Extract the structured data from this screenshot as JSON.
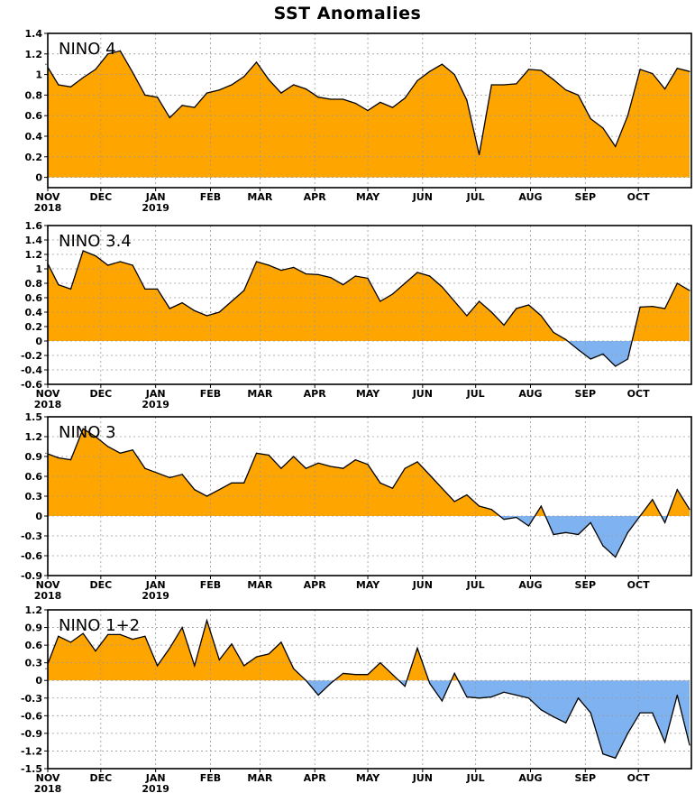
{
  "figure_title": "SST Anomalies",
  "month_labels": [
    "NOV",
    "DEC",
    "JAN",
    "FEB",
    "MAR",
    "APR",
    "MAY",
    "JUN",
    "JUL",
    "AUG",
    "SEP",
    "OCT"
  ],
  "year_labels": [
    "2018",
    "2019"
  ],
  "colors": {
    "positive_fill": "#FFA500",
    "negative_fill": "#7FB2F0",
    "line": "#000000",
    "grid": "#9a9a9a"
  },
  "chart_data": [
    {
      "type": "area",
      "label": "NINO 4",
      "ylim": [
        -0.1,
        1.4
      ],
      "yticks": [
        0,
        0.2,
        0.4,
        0.6,
        0.8,
        1,
        1.2,
        1.4
      ],
      "ytick_labels": [
        "0",
        "0.2",
        "0.4",
        "0.6",
        "0.8",
        "1",
        "1.2",
        "1.4"
      ],
      "grid": true,
      "x": [
        "2018-10-31",
        "2018-11-07",
        "2018-11-14",
        "2018-11-21",
        "2018-11-28",
        "2018-12-05",
        "2018-12-12",
        "2018-12-19",
        "2018-12-26",
        "2019-01-02",
        "2019-01-09",
        "2019-01-16",
        "2019-01-23",
        "2019-01-30",
        "2019-02-06",
        "2019-02-13",
        "2019-02-20",
        "2019-02-27",
        "2019-03-06",
        "2019-03-13",
        "2019-03-20",
        "2019-03-27",
        "2019-04-03",
        "2019-04-10",
        "2019-04-17",
        "2019-04-24",
        "2019-05-01",
        "2019-05-08",
        "2019-05-15",
        "2019-05-22",
        "2019-05-29",
        "2019-06-05",
        "2019-06-12",
        "2019-06-19",
        "2019-06-26",
        "2019-07-03",
        "2019-07-10",
        "2019-07-17",
        "2019-07-24",
        "2019-07-31",
        "2019-08-07",
        "2019-08-14",
        "2019-08-21",
        "2019-08-28",
        "2019-09-04",
        "2019-09-11",
        "2019-09-18",
        "2019-09-25",
        "2019-10-02",
        "2019-10-09",
        "2019-10-16",
        "2019-10-23",
        "2019-10-30"
      ],
      "y": [
        1.1,
        0.9,
        0.88,
        0.97,
        1.05,
        1.2,
        1.23,
        1.02,
        0.8,
        0.78,
        0.58,
        0.7,
        0.68,
        0.82,
        0.85,
        0.9,
        0.98,
        1.12,
        0.95,
        0.82,
        0.9,
        0.86,
        0.78,
        0.76,
        0.76,
        0.72,
        0.65,
        0.73,
        0.68,
        0.77,
        0.94,
        1.03,
        1.1,
        1.0,
        0.75,
        0.22,
        0.9,
        0.9,
        0.91,
        1.05,
        1.04,
        0.95,
        0.85,
        0.8,
        0.57,
        0.48,
        0.3,
        0.6,
        1.05,
        1.01,
        0.86,
        1.06,
        1.03
      ]
    },
    {
      "type": "area",
      "label": "NINO 3.4",
      "ylim": [
        -0.6,
        1.6
      ],
      "yticks": [
        -0.6,
        -0.4,
        -0.2,
        0,
        0.2,
        0.4,
        0.6,
        0.8,
        1,
        1.2,
        1.4,
        1.6
      ],
      "ytick_labels": [
        "-0.6",
        "-0.4",
        "-0.2",
        "0",
        "0.2",
        "0.4",
        "0.6",
        "0.8",
        "1",
        "1.2",
        "1.4",
        "1.6"
      ],
      "grid": true,
      "x": [
        "2018-10-31",
        "2018-11-07",
        "2018-11-14",
        "2018-11-21",
        "2018-11-28",
        "2018-12-05",
        "2018-12-12",
        "2018-12-19",
        "2018-12-26",
        "2019-01-02",
        "2019-01-09",
        "2019-01-16",
        "2019-01-23",
        "2019-01-30",
        "2019-02-06",
        "2019-02-13",
        "2019-02-20",
        "2019-02-27",
        "2019-03-06",
        "2019-03-13",
        "2019-03-20",
        "2019-03-27",
        "2019-04-03",
        "2019-04-10",
        "2019-04-17",
        "2019-04-24",
        "2019-05-01",
        "2019-05-08",
        "2019-05-15",
        "2019-05-22",
        "2019-05-29",
        "2019-06-05",
        "2019-06-12",
        "2019-06-19",
        "2019-06-26",
        "2019-07-03",
        "2019-07-10",
        "2019-07-17",
        "2019-07-24",
        "2019-07-31",
        "2019-08-07",
        "2019-08-14",
        "2019-08-21",
        "2019-08-28",
        "2019-09-04",
        "2019-09-11",
        "2019-09-18",
        "2019-09-25",
        "2019-10-02",
        "2019-10-09",
        "2019-10-16",
        "2019-10-23",
        "2019-10-30"
      ],
      "y": [
        1.12,
        0.78,
        0.72,
        1.25,
        1.18,
        1.05,
        1.1,
        1.05,
        0.72,
        0.72,
        0.45,
        0.53,
        0.42,
        0.35,
        0.4,
        0.55,
        0.7,
        1.1,
        1.05,
        0.98,
        1.02,
        0.93,
        0.92,
        0.88,
        0.78,
        0.9,
        0.87,
        0.55,
        0.65,
        0.8,
        0.95,
        0.9,
        0.75,
        0.55,
        0.35,
        0.55,
        0.4,
        0.22,
        0.45,
        0.5,
        0.35,
        0.12,
        0.02,
        -0.12,
        -0.25,
        -0.18,
        -0.35,
        -0.25,
        0.47,
        0.48,
        0.45,
        0.8,
        0.7
      ]
    },
    {
      "type": "area",
      "label": "NINO 3",
      "ylim": [
        -0.9,
        1.5
      ],
      "yticks": [
        -0.9,
        -0.6,
        -0.3,
        0,
        0.3,
        0.6,
        0.9,
        1.2,
        1.5
      ],
      "ytick_labels": [
        "-0.9",
        "-0.6",
        "-0.3",
        "0",
        "0.3",
        "0.6",
        "0.9",
        "1.2",
        "1.5"
      ],
      "grid": true,
      "x": [
        "2018-10-31",
        "2018-11-07",
        "2018-11-14",
        "2018-11-21",
        "2018-11-28",
        "2018-12-05",
        "2018-12-12",
        "2018-12-19",
        "2018-12-26",
        "2019-01-02",
        "2019-01-09",
        "2019-01-16",
        "2019-01-23",
        "2019-01-30",
        "2019-02-06",
        "2019-02-13",
        "2019-02-20",
        "2019-02-27",
        "2019-03-06",
        "2019-03-13",
        "2019-03-20",
        "2019-03-27",
        "2019-04-03",
        "2019-04-10",
        "2019-04-17",
        "2019-04-24",
        "2019-05-01",
        "2019-05-08",
        "2019-05-15",
        "2019-05-22",
        "2019-05-29",
        "2019-06-05",
        "2019-06-12",
        "2019-06-19",
        "2019-06-26",
        "2019-07-03",
        "2019-07-10",
        "2019-07-17",
        "2019-07-24",
        "2019-07-31",
        "2019-08-07",
        "2019-08-14",
        "2019-08-21",
        "2019-08-28",
        "2019-09-04",
        "2019-09-11",
        "2019-09-18",
        "2019-09-25",
        "2019-10-02",
        "2019-10-09",
        "2019-10-16",
        "2019-10-23",
        "2019-10-30"
      ],
      "y": [
        0.95,
        0.88,
        0.85,
        1.32,
        1.2,
        1.05,
        0.95,
        1.0,
        0.72,
        0.65,
        0.58,
        0.63,
        0.4,
        0.3,
        0.4,
        0.5,
        0.5,
        0.95,
        0.92,
        0.72,
        0.9,
        0.72,
        0.8,
        0.75,
        0.72,
        0.85,
        0.78,
        0.5,
        0.42,
        0.72,
        0.82,
        0.62,
        0.42,
        0.22,
        0.32,
        0.15,
        0.1,
        -0.05,
        -0.02,
        -0.15,
        0.15,
        -0.28,
        -0.25,
        -0.28,
        -0.1,
        -0.45,
        -0.62,
        -0.25,
        0.0,
        0.25,
        -0.1,
        0.4,
        0.1
      ]
    },
    {
      "type": "area",
      "label": "NINO 1+2",
      "ylim": [
        -1.5,
        1.2
      ],
      "yticks": [
        -1.5,
        -1.2,
        -0.9,
        -0.6,
        -0.3,
        0,
        0.3,
        0.6,
        0.9,
        1.2
      ],
      "ytick_labels": [
        "-1.5",
        "-1.2",
        "-0.9",
        "-0.6",
        "-0.3",
        "0",
        "0.3",
        "0.6",
        "0.9",
        "1.2"
      ],
      "grid": true,
      "x": [
        "2018-10-31",
        "2018-11-07",
        "2018-11-14",
        "2018-11-21",
        "2018-11-28",
        "2018-12-05",
        "2018-12-12",
        "2018-12-19",
        "2018-12-26",
        "2019-01-02",
        "2019-01-09",
        "2019-01-16",
        "2019-01-23",
        "2019-01-30",
        "2019-02-06",
        "2019-02-13",
        "2019-02-20",
        "2019-02-27",
        "2019-03-06",
        "2019-03-13",
        "2019-03-20",
        "2019-03-27",
        "2019-04-03",
        "2019-04-10",
        "2019-04-17",
        "2019-04-24",
        "2019-05-01",
        "2019-05-08",
        "2019-05-15",
        "2019-05-22",
        "2019-05-29",
        "2019-06-05",
        "2019-06-12",
        "2019-06-19",
        "2019-06-26",
        "2019-07-03",
        "2019-07-10",
        "2019-07-17",
        "2019-07-24",
        "2019-07-31",
        "2019-08-07",
        "2019-08-14",
        "2019-08-21",
        "2019-08-28",
        "2019-09-04",
        "2019-09-11",
        "2019-09-18",
        "2019-09-25",
        "2019-10-02",
        "2019-10-09",
        "2019-10-16",
        "2019-10-23",
        "2019-10-30"
      ],
      "y": [
        0.2,
        0.75,
        0.65,
        0.8,
        0.5,
        0.78,
        0.78,
        0.7,
        0.75,
        0.25,
        0.55,
        0.9,
        0.25,
        1.02,
        0.35,
        0.62,
        0.25,
        0.4,
        0.45,
        0.65,
        0.2,
        0.0,
        -0.25,
        -0.05,
        0.12,
        0.1,
        0.1,
        0.3,
        0.1,
        -0.1,
        0.55,
        -0.05,
        -0.35,
        0.12,
        -0.28,
        -0.3,
        -0.28,
        -0.2,
        -0.25,
        -0.3,
        -0.5,
        -0.62,
        -0.72,
        -0.3,
        -0.55,
        -1.25,
        -1.32,
        -0.9,
        -0.55,
        -0.55,
        -1.05,
        -0.25,
        -1.1
      ]
    }
  ]
}
